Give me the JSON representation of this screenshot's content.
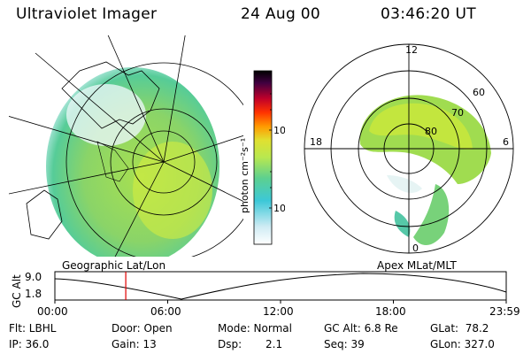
{
  "header": {
    "instrument": "Ultraviolet Imager",
    "date": "24 Aug 00",
    "time": "03:46:20 UT"
  },
  "colorbar": {
    "unit_label": "photon cm⁻²s⁻¹",
    "ticks": [
      "100",
      "10"
    ],
    "colors": [
      "#ffffff",
      "#d0ecf4",
      "#3cc8d8",
      "#5cd090",
      "#b8e850",
      "#e0e030",
      "#ff9900",
      "#ff3300",
      "#c0002a",
      "#400040",
      "#000000"
    ]
  },
  "maps": {
    "left_caption": "Geographic Lat/Lon",
    "right_caption": "Apex MLat/MLT",
    "polar": {
      "mlt_labels": [
        "12",
        "18",
        "6",
        "0"
      ],
      "lat_labels": [
        "60",
        "70",
        "80"
      ]
    }
  },
  "timeline": {
    "ylabel": "GC Alt",
    "ytick_top": "9.0",
    "ytick_bottom": "1.8",
    "xticks": [
      "00:00",
      "06:00",
      "12:00",
      "18:00",
      "23:59"
    ],
    "current_time_hours": 3.77
  },
  "status": {
    "flt": "Flt: LBHL",
    "ip": "IP: 36.0",
    "door": "Door: Open",
    "gain": "Gain: 13",
    "mode": "Mode: Normal",
    "dsp_label": "Dsp:",
    "dsp_value": "2.1",
    "gcalt": "GC Alt: 6.8 Re",
    "seq": "Seq: 39",
    "glat": "GLat:  78.2",
    "glon": "GLon: 327.0"
  }
}
